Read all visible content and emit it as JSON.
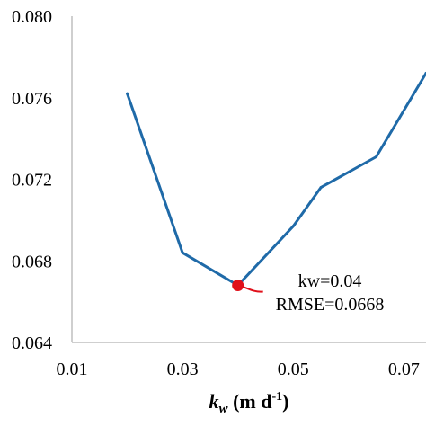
{
  "chart_data": {
    "type": "line",
    "xlabel": {
      "main": "k",
      "sub": "w",
      "unit": " (m d",
      "sup": "-1",
      "close": ")"
    },
    "ylabel": "",
    "xlim": [
      0.01,
      0.074
    ],
    "ylim": [
      0.064,
      0.08
    ],
    "x_ticks": [
      "0.01",
      "0.03",
      "0.05",
      "0.07"
    ],
    "y_ticks": [
      "0.064",
      "0.068",
      "0.072",
      "0.076",
      "0.080"
    ],
    "series": [
      {
        "color": "#1f6aa8",
        "points": [
          {
            "x": 0.02,
            "y": 0.0762
          },
          {
            "x": 0.03,
            "y": 0.0684
          },
          {
            "x": 0.04,
            "y": 0.0668
          },
          {
            "x": 0.05,
            "y": 0.0697
          },
          {
            "x": 0.055,
            "y": 0.0716
          },
          {
            "x": 0.065,
            "y": 0.0731
          },
          {
            "x": 0.074,
            "y": 0.0772
          }
        ]
      }
    ],
    "highlight": {
      "x": 0.04,
      "y": 0.0668,
      "color": "#e0101a"
    },
    "annotations": [
      "kw=0.04",
      "RMSE=0.0668"
    ],
    "grid": false
  }
}
